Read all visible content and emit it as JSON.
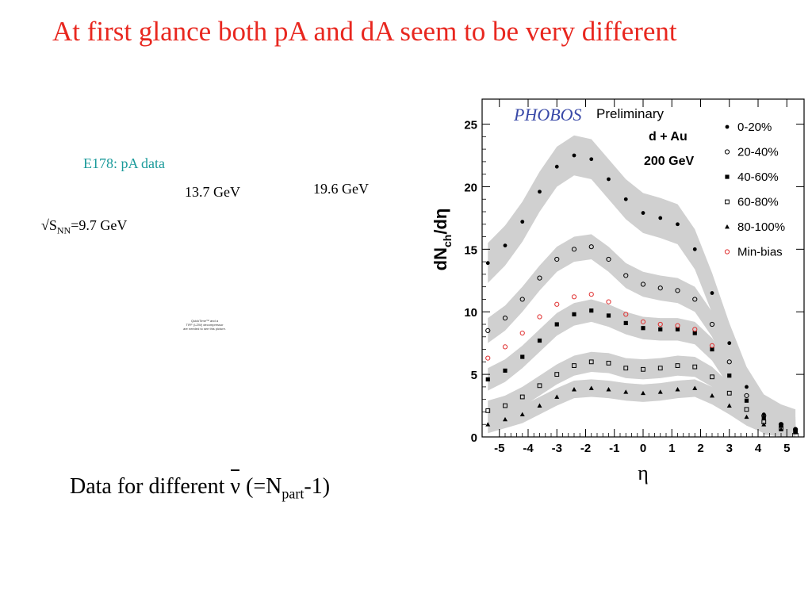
{
  "slide": {
    "title": "At first glance both pA and dA seem to be very different",
    "e178_label": "E178: pA data",
    "energy_137": "13.7 GeV",
    "energy_196": "19.6 GeV",
    "energy_97_prefix": "√S",
    "energy_97_sub": "NN",
    "energy_97_suffix": "=9.7 GeV",
    "quicktime_line1": "QuickTime™ and a",
    "quicktime_line2": "TIFF (LZW) decompressor",
    "quicktime_line3": "are needed to see this picture.",
    "bottom_prefix": "Data for different ",
    "bottom_nu": "ν",
    "bottom_mid": " (=N",
    "bottom_sub": "part",
    "bottom_suffix": "-1)"
  },
  "chart_data": {
    "type": "scatter",
    "logo_text": "PHOBOS",
    "preliminary": "Preliminary",
    "system": "d + Au",
    "energy": "200 GeV",
    "ylabel_main": "dN",
    "ylabel_sub": "ch",
    "ylabel_tail": "/dη",
    "xlabel": "η",
    "xlim": [
      -5.6,
      5.6
    ],
    "ylim": [
      0,
      27
    ],
    "xticks": [
      "-5",
      "-4",
      "-3",
      "-2",
      "-1",
      "0",
      "1",
      "2",
      "3",
      "4",
      "5"
    ],
    "yticks": [
      "0",
      "5",
      "10",
      "15",
      "20",
      "25"
    ],
    "legend_position": "top-right",
    "band_color": "#d0d0d0",
    "series": [
      {
        "name": "0-20%",
        "marker": "circle-filled",
        "color": "#000000",
        "band": true,
        "band_width": 1.6,
        "x": [
          -5.4,
          -4.8,
          -4.2,
          -3.6,
          -3.0,
          -2.4,
          -1.8,
          -1.2,
          -0.6,
          0.0,
          0.6,
          1.2,
          1.8,
          2.4,
          3.0,
          3.6,
          4.2,
          4.8,
          5.3
        ],
        "y": [
          13.9,
          15.3,
          17.2,
          19.6,
          21.6,
          22.5,
          22.2,
          20.6,
          19.0,
          17.9,
          17.5,
          17.0,
          15.0,
          11.5,
          7.5,
          4.0,
          1.8,
          1.0,
          0.6
        ]
      },
      {
        "name": "20-40%",
        "marker": "circle-open",
        "color": "#000000",
        "band": true,
        "band_width": 1.0,
        "x": [
          -5.4,
          -4.8,
          -4.2,
          -3.6,
          -3.0,
          -2.4,
          -1.8,
          -1.2,
          -0.6,
          0.0,
          0.6,
          1.2,
          1.8,
          2.4,
          3.0,
          3.6,
          4.2,
          4.8,
          5.3
        ],
        "y": [
          8.5,
          9.5,
          11.0,
          12.7,
          14.2,
          15.0,
          15.2,
          14.2,
          12.9,
          12.2,
          11.9,
          11.7,
          11.0,
          9.0,
          6.0,
          3.3,
          1.7,
          1.0,
          0.6
        ]
      },
      {
        "name": "40-60%",
        "marker": "square-filled",
        "color": "#000000",
        "band": true,
        "band_width": 0.9,
        "x": [
          -5.4,
          -4.8,
          -4.2,
          -3.6,
          -3.0,
          -2.4,
          -1.8,
          -1.2,
          -0.6,
          0.0,
          0.6,
          1.2,
          1.8,
          2.4,
          3.0,
          3.6,
          4.2,
          4.8,
          5.3
        ],
        "y": [
          4.6,
          5.3,
          6.4,
          7.7,
          9.0,
          9.8,
          10.1,
          9.7,
          9.1,
          8.7,
          8.6,
          8.6,
          8.3,
          7.0,
          4.9,
          2.9,
          1.5,
          0.9,
          0.5
        ]
      },
      {
        "name": "60-80%",
        "marker": "square-open",
        "color": "#000000",
        "band": true,
        "band_width": 0.8,
        "x": [
          -5.4,
          -4.8,
          -4.2,
          -3.6,
          -3.0,
          -2.4,
          -1.8,
          -1.2,
          -0.6,
          0.0,
          0.6,
          1.2,
          1.8,
          2.4,
          3.0,
          3.6,
          4.2,
          4.8,
          5.3
        ],
        "y": [
          2.1,
          2.5,
          3.2,
          4.1,
          5.0,
          5.7,
          6.0,
          5.9,
          5.5,
          5.4,
          5.5,
          5.7,
          5.6,
          4.8,
          3.5,
          2.2,
          1.2,
          0.7,
          0.4
        ]
      },
      {
        "name": "80-100%",
        "marker": "triangle-filled",
        "color": "#000000",
        "band": true,
        "band_width": 0.7,
        "x": [
          -5.4,
          -4.8,
          -4.2,
          -3.6,
          -3.0,
          -2.4,
          -1.8,
          -1.2,
          -0.6,
          0.0,
          0.6,
          1.2,
          1.8,
          2.4,
          3.0,
          3.6,
          4.2,
          4.8,
          5.3
        ],
        "y": [
          1.0,
          1.4,
          1.8,
          2.5,
          3.2,
          3.8,
          3.9,
          3.8,
          3.6,
          3.5,
          3.6,
          3.8,
          3.9,
          3.3,
          2.5,
          1.6,
          1.0,
          0.6,
          0.4
        ]
      },
      {
        "name": "Min-bias",
        "marker": "circle-open",
        "color": "#e03030",
        "band": false,
        "band_width": 0,
        "x": [
          -5.4,
          -4.8,
          -4.2,
          -3.6,
          -3.0,
          -2.4,
          -1.8,
          -1.2,
          -0.6,
          0.0,
          0.6,
          1.2,
          1.8,
          2.4
        ],
        "y": [
          6.3,
          7.2,
          8.3,
          9.6,
          10.6,
          11.2,
          11.4,
          10.8,
          9.8,
          9.2,
          9.0,
          8.9,
          8.6,
          7.3
        ]
      }
    ]
  }
}
